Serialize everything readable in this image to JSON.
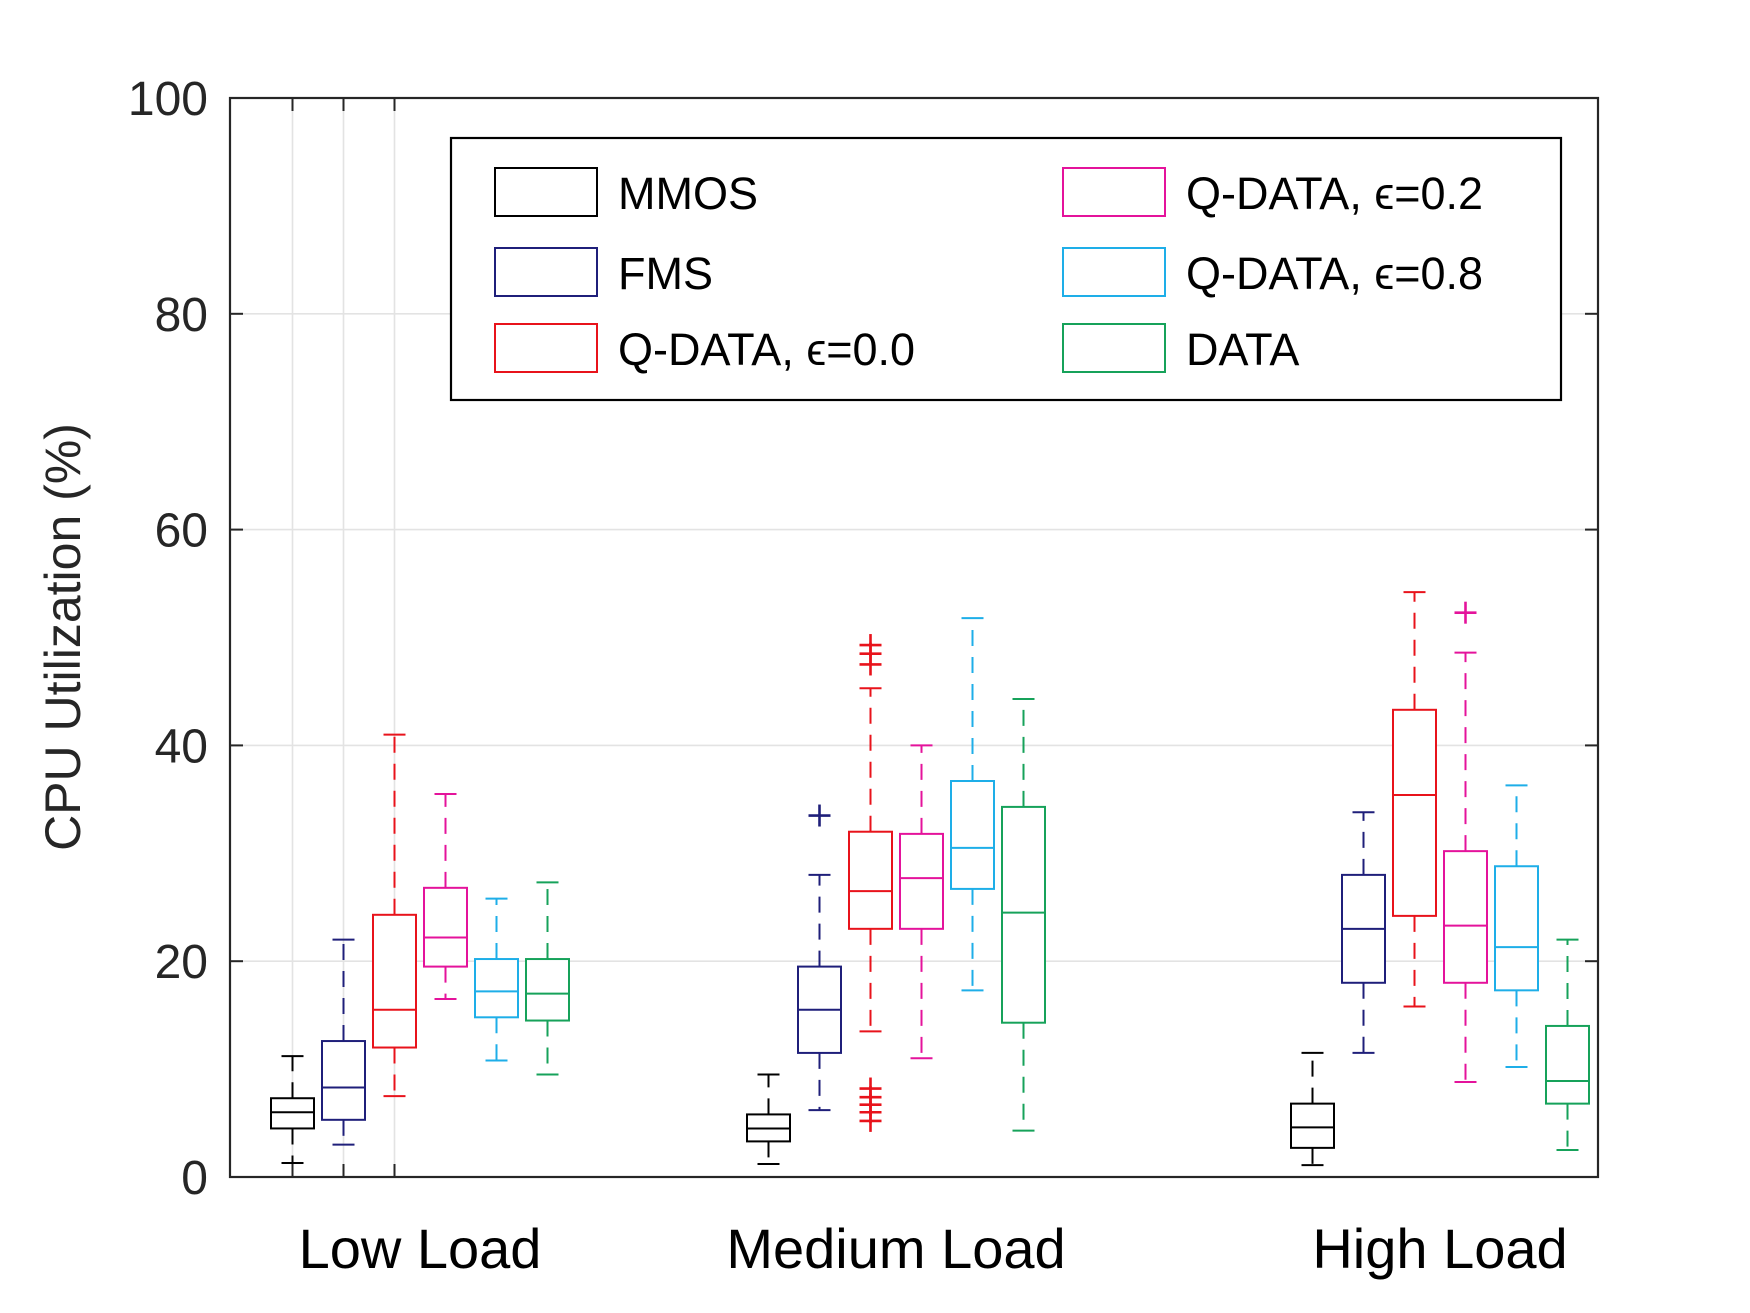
{
  "chart_data": {
    "type": "boxplot",
    "title": "",
    "xlabel": "",
    "ylabel": "CPU Utilization (%)",
    "ylim": [
      0,
      100
    ],
    "yticks": [
      "0",
      "20",
      "40",
      "60",
      "80",
      "100"
    ],
    "grid": true,
    "legend_position": "top-right",
    "categories": [
      "Low Load",
      "Medium Load",
      "High Load"
    ],
    "series": [
      {
        "name": "MMOS",
        "color": "#000000",
        "boxes": [
          {
            "whisker_low": 1.3,
            "q1": 4.5,
            "median": 6.0,
            "q3": 7.3,
            "whisker_high": 11.2,
            "outliers": []
          },
          {
            "whisker_low": 1.2,
            "q1": 3.3,
            "median": 4.5,
            "q3": 5.8,
            "whisker_high": 9.5,
            "outliers": []
          },
          {
            "whisker_low": 1.1,
            "q1": 2.7,
            "median": 4.6,
            "q3": 6.8,
            "whisker_high": 11.5,
            "outliers": []
          }
        ]
      },
      {
        "name": "FMS",
        "color": "#1f1f7a",
        "boxes": [
          {
            "whisker_low": 3.0,
            "q1": 5.3,
            "median": 8.3,
            "q3": 12.6,
            "whisker_high": 22.0,
            "outliers": []
          },
          {
            "whisker_low": 6.2,
            "q1": 11.5,
            "median": 15.5,
            "q3": 19.5,
            "whisker_high": 28.0,
            "outliers": [
              33.5
            ]
          },
          {
            "whisker_low": 11.5,
            "q1": 18.0,
            "median": 23.0,
            "q3": 28.0,
            "whisker_high": 33.8,
            "outliers": []
          }
        ]
      },
      {
        "name": "Q-DATA, ϵ=0.0",
        "color": "#e8131b",
        "boxes": [
          {
            "whisker_low": 7.5,
            "q1": 12.0,
            "median": 15.5,
            "q3": 24.3,
            "whisker_high": 41.0,
            "outliers": []
          },
          {
            "whisker_low": 13.5,
            "q1": 23.0,
            "median": 26.5,
            "q3": 32.0,
            "whisker_high": 45.3,
            "outliers": [
              5.2,
              6.0,
              6.7,
              7.4,
              8.2,
              47.5,
              48.5,
              49.3
            ]
          },
          {
            "whisker_low": 15.8,
            "q1": 24.2,
            "median": 35.4,
            "q3": 43.3,
            "whisker_high": 54.2,
            "outliers": []
          }
        ]
      },
      {
        "name": "Q-DATA, ϵ=0.2",
        "color": "#e4139b",
        "boxes": [
          {
            "whisker_low": 16.5,
            "q1": 19.5,
            "median": 22.2,
            "q3": 26.8,
            "whisker_high": 35.5,
            "outliers": []
          },
          {
            "whisker_low": 11.0,
            "q1": 23.0,
            "median": 27.7,
            "q3": 31.8,
            "whisker_high": 40.0,
            "outliers": []
          },
          {
            "whisker_low": 8.8,
            "q1": 18.0,
            "median": 23.3,
            "q3": 30.2,
            "whisker_high": 48.6,
            "outliers": [
              52.3
            ]
          }
        ]
      },
      {
        "name": "Q-DATA, ϵ=0.8",
        "color": "#1eaee8",
        "boxes": [
          {
            "whisker_low": 10.8,
            "q1": 14.8,
            "median": 17.2,
            "q3": 20.2,
            "whisker_high": 25.8,
            "outliers": []
          },
          {
            "whisker_low": 17.3,
            "q1": 26.7,
            "median": 30.5,
            "q3": 36.7,
            "whisker_high": 51.8,
            "outliers": []
          },
          {
            "whisker_low": 10.2,
            "q1": 17.3,
            "median": 21.3,
            "q3": 28.8,
            "whisker_high": 36.3,
            "outliers": []
          }
        ]
      },
      {
        "name": "DATA",
        "color": "#16a25a",
        "boxes": [
          {
            "whisker_low": 9.5,
            "q1": 14.5,
            "median": 17.0,
            "q3": 20.2,
            "whisker_high": 27.3,
            "outliers": []
          },
          {
            "whisker_low": 4.3,
            "q1": 14.3,
            "median": 24.5,
            "q3": 34.3,
            "whisker_high": 44.3,
            "outliers": []
          },
          {
            "whisker_low": 2.5,
            "q1": 6.8,
            "median": 8.9,
            "q3": 14.0,
            "whisker_high": 22.0,
            "outliers": []
          }
        ]
      }
    ]
  }
}
